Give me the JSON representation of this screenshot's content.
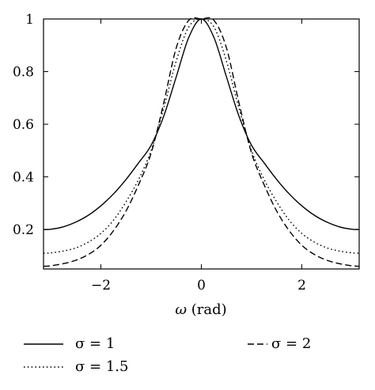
{
  "chart_data": {
    "type": "line",
    "xlabel_symbol": "ω",
    "xlabel_unit": "(rad)",
    "ylabel": "",
    "xlim": [
      -3.1416,
      3.1416
    ],
    "ylim": [
      0.05,
      1.0
    ],
    "grid": false,
    "legend_position": "bottom",
    "x_ticks": [
      {
        "value": -2,
        "label": "−2"
      },
      {
        "value": 0,
        "label": "0"
      },
      {
        "value": 2,
        "label": "2"
      }
    ],
    "y_ticks": [
      {
        "value": 0.2,
        "label": "0.2"
      },
      {
        "value": 0.4,
        "label": "0.4"
      },
      {
        "value": 0.6,
        "label": "0.6"
      },
      {
        "value": 0.8,
        "label": "0.8"
      },
      {
        "value": 1.0,
        "label": "1"
      }
    ],
    "x": [
      -3.1416,
      -3.0,
      -2.75,
      -2.5,
      -2.25,
      -2.0,
      -1.75,
      -1.5,
      -1.25,
      -1.0,
      -0.75,
      -0.5,
      -0.25,
      0.0,
      0.25,
      0.5,
      0.75,
      1.0,
      1.25,
      1.5,
      1.75,
      2.0,
      2.25,
      2.5,
      2.75,
      3.0,
      3.1416
    ],
    "series": [
      {
        "name": "σ = 1",
        "style": "solid",
        "values": [
          0.2,
          0.201,
          0.21,
          0.228,
          0.254,
          0.29,
          0.335,
          0.39,
          0.453,
          0.52,
          0.63,
          0.78,
          0.93,
          1.0,
          0.93,
          0.78,
          0.63,
          0.52,
          0.453,
          0.39,
          0.335,
          0.29,
          0.254,
          0.228,
          0.21,
          0.201,
          0.2
        ]
      },
      {
        "name": "σ = 1.5",
        "style": "dotted",
        "values": [
          0.11,
          0.111,
          0.118,
          0.13,
          0.152,
          0.185,
          0.235,
          0.305,
          0.39,
          0.5,
          0.66,
          0.84,
          0.97,
          1.0,
          0.97,
          0.84,
          0.66,
          0.5,
          0.39,
          0.305,
          0.235,
          0.185,
          0.152,
          0.13,
          0.118,
          0.111,
          0.11
        ]
      },
      {
        "name": "σ = 2",
        "style": "dashed",
        "values": [
          0.06,
          0.062,
          0.07,
          0.083,
          0.105,
          0.14,
          0.195,
          0.27,
          0.37,
          0.49,
          0.68,
          0.89,
          0.995,
          1.0,
          0.995,
          0.89,
          0.68,
          0.49,
          0.37,
          0.27,
          0.195,
          0.14,
          0.105,
          0.083,
          0.07,
          0.062,
          0.06
        ]
      }
    ]
  }
}
